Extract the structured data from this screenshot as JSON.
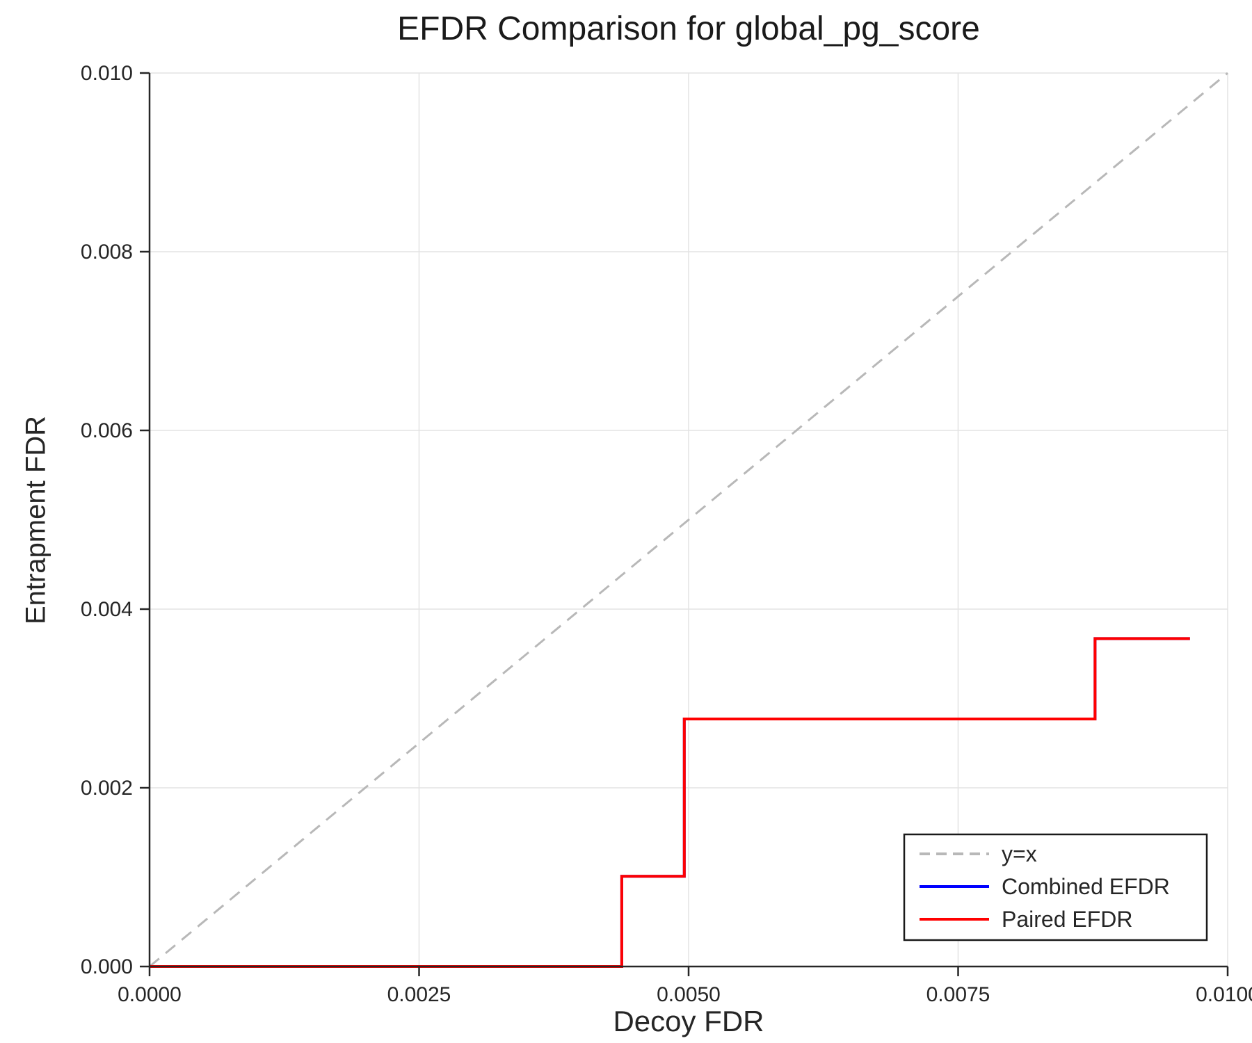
{
  "page": {
    "background_color": "#ffffff"
  },
  "chart_data": {
    "type": "line",
    "title": "EFDR Comparison for global_pg_score",
    "xlabel": "Decoy FDR",
    "ylabel": "Entrapment FDR",
    "xlim": [
      0.0,
      0.01
    ],
    "ylim": [
      0.0,
      0.01
    ],
    "xticks": [
      0.0,
      0.0025,
      0.005,
      0.0075,
      0.01
    ],
    "xtick_labels": [
      "0.0000",
      "0.0025",
      "0.0050",
      "0.0075",
      "0.0100"
    ],
    "yticks": [
      0.0,
      0.002,
      0.004,
      0.006,
      0.008,
      0.01
    ],
    "ytick_labels": [
      "0.000",
      "0.002",
      "0.004",
      "0.006",
      "0.008",
      "0.010"
    ],
    "grid": true,
    "grid_color": "#e4e4e4",
    "axis_color": "#262626",
    "text_color": "#262626",
    "reference_line": {
      "label": "y=x",
      "color": "#b8b8b8",
      "dashed": true,
      "from": [
        0.0,
        0.0
      ],
      "to": [
        0.01,
        0.01
      ]
    },
    "series": [
      {
        "name": "Combined EFDR",
        "color": "#0000ff",
        "points": [
          [
            0.0,
            0.0
          ],
          [
            0.00438,
            0.0
          ],
          [
            0.00438,
            0.00101
          ],
          [
            0.00496,
            0.00101
          ],
          [
            0.00496,
            0.00277
          ],
          [
            0.00877,
            0.00277
          ],
          [
            0.00877,
            0.00367
          ],
          [
            0.00965,
            0.00367
          ]
        ]
      },
      {
        "name": "Paired EFDR",
        "color": "#ff0000",
        "points": [
          [
            0.0,
            0.0
          ],
          [
            0.00438,
            0.0
          ],
          [
            0.00438,
            0.00101
          ],
          [
            0.00496,
            0.00101
          ],
          [
            0.00496,
            0.00277
          ],
          [
            0.00877,
            0.00277
          ],
          [
            0.00877,
            0.00367
          ],
          [
            0.00965,
            0.00367
          ]
        ]
      }
    ],
    "legend": {
      "position": "lower right",
      "entries": [
        {
          "label": "y=x",
          "color": "#b8b8b8",
          "dashed": true
        },
        {
          "label": "Combined EFDR",
          "color": "#0000ff",
          "dashed": false
        },
        {
          "label": "Paired EFDR",
          "color": "#ff0000",
          "dashed": false
        }
      ]
    }
  }
}
